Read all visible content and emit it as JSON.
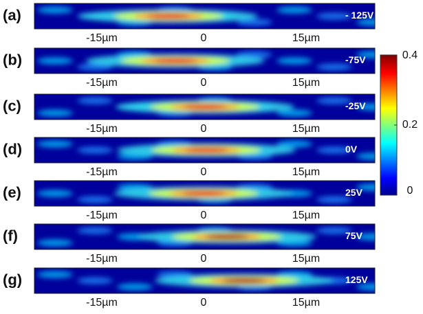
{
  "panels": [
    {
      "label": "(a)",
      "voltage": "- 125V",
      "xticks": [
        "-15µm",
        "0",
        "15µm"
      ]
    },
    {
      "label": "(b)",
      "voltage": "-75V",
      "xticks": [
        "-15µm",
        "0",
        "15µm"
      ]
    },
    {
      "label": "(c)",
      "voltage": "-25V",
      "xticks": [
        "-15µm",
        "0",
        "15µm"
      ]
    },
    {
      "label": "(d)",
      "voltage": "0V",
      "xticks": [
        "-15µm",
        "0",
        "15µm"
      ]
    },
    {
      "label": "(e)",
      "voltage": "25V",
      "xticks": [
        "-15µm",
        "0",
        "15µm"
      ]
    },
    {
      "label": "(f)",
      "voltage": "75V",
      "xticks": [
        "-15µm",
        "0",
        "15µm"
      ]
    },
    {
      "label": "(g)",
      "voltage": "125V",
      "xticks": [
        "-15µm",
        "0",
        "15µm"
      ]
    }
  ],
  "colorbar": {
    "lim": [
      0,
      0.4
    ],
    "ticks": [
      0,
      0.2,
      0.4
    ]
  }
}
